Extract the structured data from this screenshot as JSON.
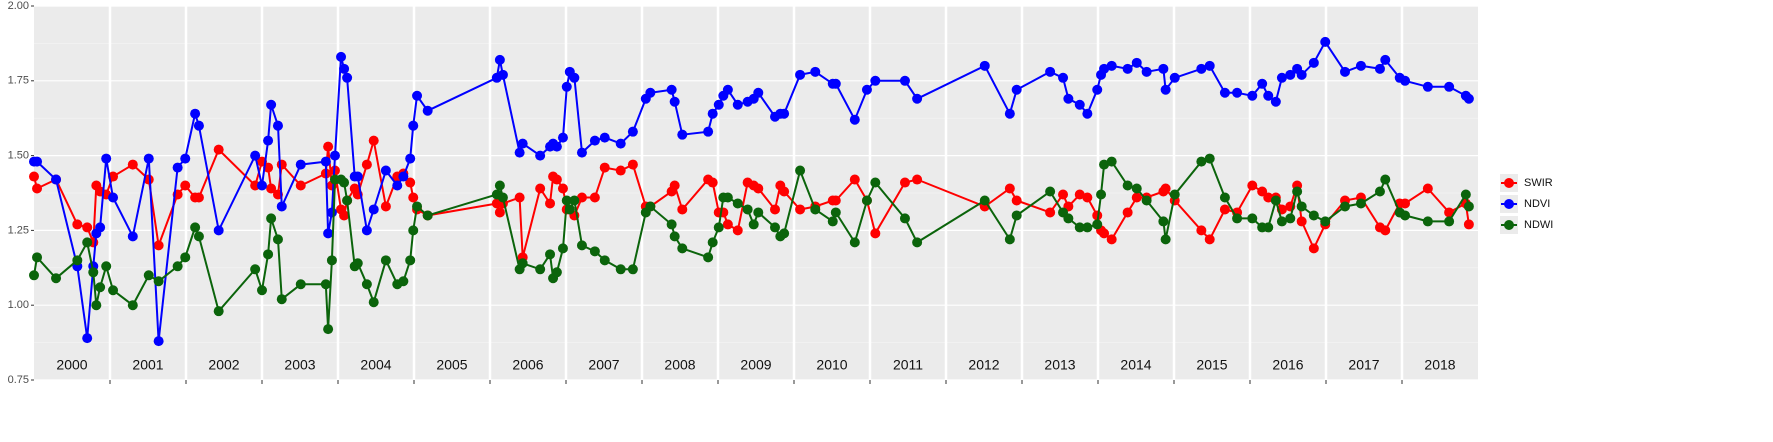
{
  "chart_data": {
    "type": "line",
    "legend": "right",
    "grid": true,
    "xlim": [
      2000,
      2019
    ],
    "xticks": [
      {
        "value": 2000.5,
        "label": "2000"
      },
      {
        "value": 2001.5,
        "label": "2001"
      },
      {
        "value": 2002.5,
        "label": "2002"
      },
      {
        "value": 2003.5,
        "label": "2003"
      },
      {
        "value": 2004.5,
        "label": "2004"
      },
      {
        "value": 2005.5,
        "label": "2005"
      },
      {
        "value": 2006.5,
        "label": "2006"
      },
      {
        "value": 2007.5,
        "label": "2007"
      },
      {
        "value": 2008.5,
        "label": "2008"
      },
      {
        "value": 2009.5,
        "label": "2009"
      },
      {
        "value": 2010.5,
        "label": "2010"
      },
      {
        "value": 2011.5,
        "label": "2011"
      },
      {
        "value": 2012.5,
        "label": "2012"
      },
      {
        "value": 2013.5,
        "label": "2013"
      },
      {
        "value": 2014.5,
        "label": "2014"
      },
      {
        "value": 2015.5,
        "label": "2015"
      },
      {
        "value": 2016.5,
        "label": "2016"
      },
      {
        "value": 2017.5,
        "label": "2017"
      },
      {
        "value": 2018.5,
        "label": "2018"
      }
    ],
    "ylim": [
      0.75,
      2.0
    ],
    "yticks": [
      {
        "value": 0.75,
        "label": "0.75"
      },
      {
        "value": 1.0,
        "label": "1.00"
      },
      {
        "value": 1.25,
        "label": "1.25"
      },
      {
        "value": 1.5,
        "label": "1.50"
      },
      {
        "value": 1.75,
        "label": "1.75"
      },
      {
        "value": 2.0,
        "label": "2.00"
      }
    ],
    "x": [
      2000.0,
      2000.04,
      2000.29,
      2000.57,
      2000.7,
      2000.78,
      2000.82,
      2000.87,
      2000.95,
      2001.04,
      2001.3,
      2001.51,
      2001.64,
      2001.89,
      2001.99,
      2002.12,
      2002.17,
      2002.43,
      2002.91,
      2003.0,
      2003.08,
      2003.12,
      2003.21,
      2003.26,
      2003.51,
      2003.84,
      2003.87,
      2003.92,
      2003.96,
      2004.04,
      2004.08,
      2004.12,
      2004.22,
      2004.26,
      2004.38,
      2004.47,
      2004.63,
      2004.78,
      2004.86,
      2004.95,
      2004.99,
      2005.04,
      2005.18,
      2006.09,
      2006.13,
      2006.17,
      2006.39,
      2006.43,
      2006.66,
      2006.79,
      2006.83,
      2006.88,
      2006.96,
      2007.01,
      2007.05,
      2007.11,
      2007.21,
      2007.38,
      2007.51,
      2007.72,
      2007.88,
      2008.05,
      2008.11,
      2008.39,
      2008.43,
      2008.53,
      2008.87,
      2008.93,
      2009.01,
      2009.07,
      2009.13,
      2009.26,
      2009.39,
      2009.47,
      2009.53,
      2009.75,
      2009.82,
      2009.87,
      2010.08,
      2010.28,
      2010.51,
      2010.55,
      2010.8,
      2010.96,
      2011.07,
      2011.46,
      2011.62,
      2012.51,
      2012.84,
      2012.93,
      2013.37,
      2013.54,
      2013.61,
      2013.76,
      2013.86,
      2013.99,
      2014.04,
      2014.08,
      2014.18,
      2014.39,
      2014.51,
      2014.64,
      2014.86,
      2014.89,
      2015.01,
      2015.36,
      2015.47,
      2015.67,
      2015.83,
      2016.03,
      2016.16,
      2016.24,
      2016.34,
      2016.42,
      2016.53,
      2016.62,
      2016.68,
      2016.84,
      2016.99,
      2017.25,
      2017.46,
      2017.71,
      2017.78,
      2017.97,
      2018.04,
      2018.34,
      2018.62,
      2018.84,
      2018.88
    ],
    "series": [
      {
        "name": "SWIR",
        "color": "#ff0000",
        "values": [
          1.43,
          1.39,
          1.42,
          1.27,
          1.26,
          1.21,
          1.4,
          1.38,
          1.37,
          1.43,
          1.47,
          1.42,
          1.2,
          1.37,
          1.4,
          1.36,
          1.36,
          1.52,
          1.4,
          1.48,
          1.46,
          1.39,
          1.37,
          1.47,
          1.4,
          1.44,
          1.53,
          1.4,
          1.45,
          1.32,
          1.3,
          1.35,
          1.39,
          1.37,
          1.47,
          1.55,
          1.33,
          1.43,
          1.44,
          1.41,
          1.36,
          1.32,
          1.3,
          1.34,
          1.31,
          1.34,
          1.36,
          1.16,
          1.39,
          1.34,
          1.43,
          1.42,
          1.39,
          1.32,
          1.32,
          1.3,
          1.36,
          1.36,
          1.46,
          1.45,
          1.47,
          1.33,
          1.33,
          1.38,
          1.4,
          1.32,
          1.42,
          1.41,
          1.31,
          1.31,
          1.27,
          1.25,
          1.41,
          1.4,
          1.39,
          1.32,
          1.4,
          1.38,
          1.32,
          1.33,
          1.35,
          1.35,
          1.42,
          1.35,
          1.24,
          1.41,
          1.42,
          1.33,
          1.39,
          1.35,
          1.31,
          1.37,
          1.33,
          1.37,
          1.36,
          1.3,
          1.25,
          1.24,
          1.22,
          1.31,
          1.36,
          1.36,
          1.38,
          1.39,
          1.35,
          1.25,
          1.22,
          1.32,
          1.31,
          1.4,
          1.38,
          1.36,
          1.36,
          1.32,
          1.33,
          1.4,
          1.28,
          1.19,
          1.27,
          1.35,
          1.36,
          1.26,
          1.25,
          1.34,
          1.34,
          1.39,
          1.31,
          1.34,
          1.27
        ]
      },
      {
        "name": "NDVI",
        "color": "#0000ff",
        "values": [
          1.48,
          1.48,
          1.42,
          1.13,
          0.89,
          1.13,
          1.24,
          1.26,
          1.49,
          1.36,
          1.23,
          1.49,
          0.88,
          1.46,
          1.49,
          1.64,
          1.6,
          1.25,
          1.5,
          1.4,
          1.55,
          1.67,
          1.6,
          1.33,
          1.47,
          1.48,
          1.24,
          1.31,
          1.5,
          1.83,
          1.79,
          1.76,
          1.43,
          1.43,
          1.25,
          1.32,
          1.45,
          1.4,
          1.43,
          1.49,
          1.6,
          1.7,
          1.65,
          1.76,
          1.82,
          1.77,
          1.51,
          1.54,
          1.5,
          1.53,
          1.54,
          1.53,
          1.56,
          1.73,
          1.78,
          1.76,
          1.51,
          1.55,
          1.56,
          1.54,
          1.58,
          1.69,
          1.71,
          1.72,
          1.68,
          1.57,
          1.58,
          1.64,
          1.67,
          1.7,
          1.72,
          1.67,
          1.68,
          1.69,
          1.71,
          1.63,
          1.64,
          1.64,
          1.77,
          1.78,
          1.74,
          1.74,
          1.62,
          1.72,
          1.75,
          1.75,
          1.69,
          1.8,
          1.64,
          1.72,
          1.78,
          1.76,
          1.69,
          1.67,
          1.64,
          1.72,
          1.77,
          1.79,
          1.8,
          1.79,
          1.81,
          1.78,
          1.79,
          1.72,
          1.76,
          1.79,
          1.8,
          1.71,
          1.71,
          1.7,
          1.74,
          1.7,
          1.68,
          1.76,
          1.77,
          1.79,
          1.77,
          1.81,
          1.88,
          1.78,
          1.8,
          1.79,
          1.82,
          1.76,
          1.75,
          1.73,
          1.73,
          1.7,
          1.69
        ]
      },
      {
        "name": "NDWI",
        "color": "#0b640b",
        "values": [
          1.1,
          1.16,
          1.09,
          1.15,
          1.21,
          1.11,
          1.0,
          1.06,
          1.13,
          1.05,
          1.0,
          1.1,
          1.08,
          1.13,
          1.16,
          1.26,
          1.23,
          0.98,
          1.12,
          1.05,
          1.17,
          1.29,
          1.22,
          1.02,
          1.07,
          1.07,
          0.92,
          1.15,
          1.42,
          1.42,
          1.41,
          1.35,
          1.13,
          1.14,
          1.07,
          1.01,
          1.15,
          1.07,
          1.08,
          1.15,
          1.25,
          1.33,
          1.3,
          1.37,
          1.4,
          1.36,
          1.12,
          1.14,
          1.12,
          1.17,
          1.09,
          1.11,
          1.19,
          1.35,
          1.32,
          1.35,
          1.2,
          1.18,
          1.15,
          1.12,
          1.12,
          1.31,
          1.33,
          1.27,
          1.23,
          1.19,
          1.16,
          1.21,
          1.26,
          1.36,
          1.36,
          1.34,
          1.32,
          1.27,
          1.31,
          1.26,
          1.23,
          1.24,
          1.45,
          1.32,
          1.28,
          1.31,
          1.21,
          1.35,
          1.41,
          1.29,
          1.21,
          1.35,
          1.22,
          1.3,
          1.38,
          1.31,
          1.29,
          1.26,
          1.26,
          1.27,
          1.37,
          1.47,
          1.48,
          1.4,
          1.39,
          1.35,
          1.28,
          1.22,
          1.37,
          1.48,
          1.49,
          1.36,
          1.29,
          1.29,
          1.26,
          1.26,
          1.35,
          1.28,
          1.29,
          1.38,
          1.33,
          1.3,
          1.28,
          1.33,
          1.34,
          1.38,
          1.42,
          1.31,
          1.3,
          1.28,
          1.28,
          1.37,
          1.33
        ]
      }
    ]
  }
}
